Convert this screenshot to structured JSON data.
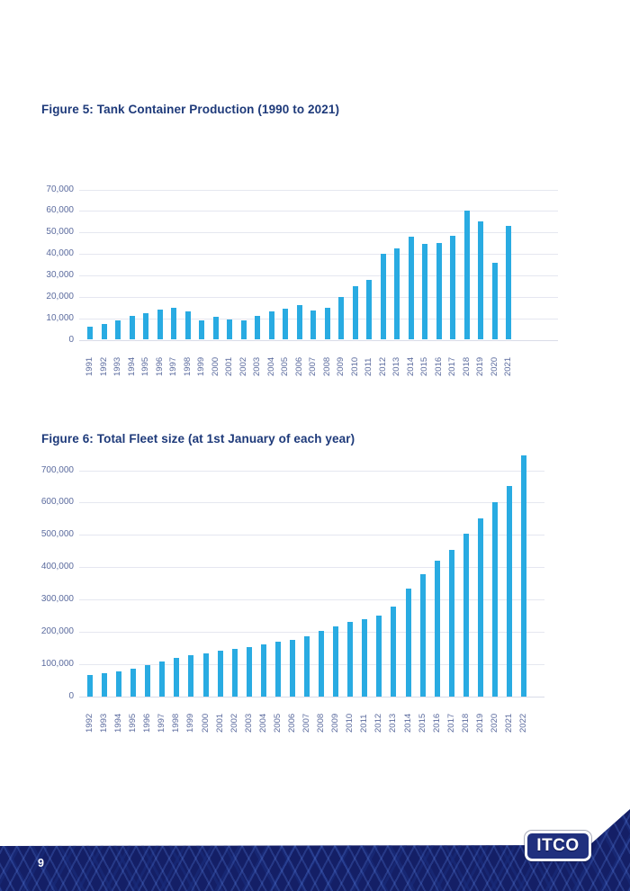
{
  "page": {
    "number": "9"
  },
  "logo": {
    "text": "ITCO"
  },
  "colors": {
    "bar": "#29ABE2",
    "title_text": "#1E3A7A",
    "axis_label": "#5B6B9E",
    "gridline": "#E5E7F0",
    "footer_navy": "#141F66"
  },
  "figure5": {
    "title": "Figure 5: Tank Container Production (1990 to 2021)",
    "chart_data": {
      "type": "bar",
      "title": "Figure 5: Tank Container Production (1990 to 2021)",
      "categories": [
        "1991",
        "1992",
        "1993",
        "1994",
        "1995",
        "1996",
        "1997",
        "1998",
        "1999",
        "2000",
        "2001",
        "2002",
        "2003",
        "2004",
        "2005",
        "2006",
        "2007",
        "2008",
        "2009",
        "2010",
        "2011",
        "2012",
        "2013",
        "2014",
        "2015",
        "2016",
        "2017",
        "2018",
        "2019",
        "2020",
        "2021"
      ],
      "values": [
        6000,
        7500,
        9000,
        11000,
        12500,
        14000,
        15000,
        13000,
        9000,
        10500,
        9500,
        9000,
        11000,
        13000,
        14500,
        16000,
        13500,
        15000,
        20000,
        25000,
        28000,
        40000,
        42500,
        48000,
        44500,
        45000,
        48500,
        60000,
        55000,
        36000,
        53000
      ],
      "xlabel": "",
      "ylabel": "",
      "ylim": [
        0,
        70000
      ],
      "yticks": [
        0,
        10000,
        20000,
        30000,
        40000,
        50000,
        60000,
        70000
      ],
      "grid": true,
      "legend": false,
      "bar_color": "#29ABE2"
    }
  },
  "figure6": {
    "title": "Figure 6: Total Fleet size (at 1st January of each year)",
    "chart_data": {
      "type": "bar",
      "title": "Figure 6: Total Fleet size (at 1st January of each year)",
      "categories": [
        "1992",
        "1993",
        "1994",
        "1995",
        "1996",
        "1997",
        "1998",
        "1999",
        "2000",
        "2001",
        "2002",
        "2003",
        "2004",
        "2005",
        "2006",
        "2007",
        "2008",
        "2009",
        "2010",
        "2011",
        "2012",
        "2013",
        "2014",
        "2015",
        "2016",
        "2017",
        "2018",
        "2019",
        "2020",
        "2021",
        "2022"
      ],
      "values": [
        67000,
        72000,
        79000,
        86000,
        97000,
        110000,
        120000,
        130000,
        135000,
        143000,
        148000,
        155000,
        162000,
        170000,
        176000,
        187000,
        203000,
        218000,
        231000,
        240000,
        252000,
        278000,
        335000,
        380000,
        421000,
        453000,
        503000,
        550000,
        600000,
        650000,
        745000
      ],
      "xlabel": "",
      "ylabel": "",
      "ylim": [
        0,
        700000
      ],
      "yticks": [
        0,
        100000,
        200000,
        300000,
        400000,
        500000,
        600000,
        700000
      ],
      "grid": true,
      "legend": false,
      "bar_color": "#29ABE2"
    }
  }
}
